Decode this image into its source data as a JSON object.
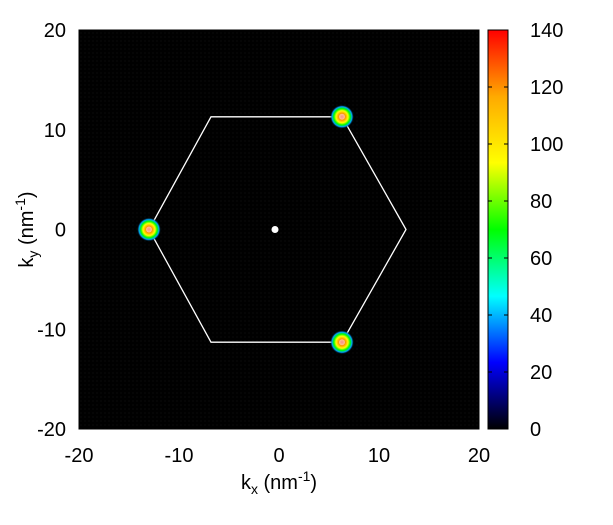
{
  "chart_data": {
    "type": "heatmap",
    "title": "",
    "xlabel": {
      "main": "k",
      "sub": "x",
      "unit_prefix": " (nm",
      "unit_sup": "-1",
      "unit_suffix": ")"
    },
    "ylabel": {
      "main": "k",
      "sub": "y",
      "unit_prefix": " (nm",
      "unit_sup": "-1",
      "unit_suffix": ")"
    },
    "xlim": [
      -20,
      20
    ],
    "ylim": [
      -20,
      20
    ],
    "x_ticks": [
      -20,
      -10,
      0,
      10,
      20
    ],
    "y_ticks": [
      -20,
      -10,
      0,
      10,
      20
    ],
    "colorbar": {
      "range": [
        0,
        140
      ],
      "ticks": [
        0,
        20,
        40,
        60,
        80,
        100,
        120,
        140
      ],
      "colors": [
        "#000000",
        "#0000ff",
        "#00ffff",
        "#00ff00",
        "#ffff00",
        "#ffaa00",
        "#ff0000"
      ]
    },
    "background_color": "#000000",
    "peaks": [
      {
        "kx": 6.3,
        "ky": 11.3,
        "intensity": 140,
        "radius": 1.2
      },
      {
        "kx": -13.0,
        "ky": 0.0,
        "intensity": 140,
        "radius": 1.2
      },
      {
        "kx": 6.3,
        "ky": -11.3,
        "intensity": 140,
        "radius": 1.2
      }
    ],
    "center_point": {
      "kx": -0.4,
      "ky": 0.0,
      "color": "#ffffff"
    },
    "hexagon": {
      "color": "#ffffff",
      "vertices": [
        [
          12.7,
          0
        ],
        [
          6.3,
          11.3
        ],
        [
          -6.8,
          11.3
        ],
        [
          -13.0,
          0
        ],
        [
          -6.8,
          -11.3
        ],
        [
          6.3,
          -11.3
        ]
      ]
    }
  }
}
